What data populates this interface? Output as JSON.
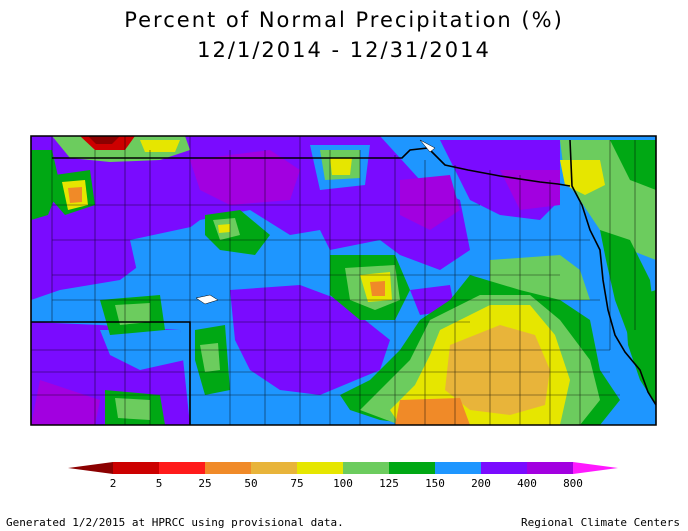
{
  "title": {
    "line1": "Percent of Normal Precipitation (%)",
    "line2": "12/1/2014 - 12/31/2014"
  },
  "legend": {
    "colors": [
      "#8b0000",
      "#cc0000",
      "#ff1a1a",
      "#f08a28",
      "#e8b43a",
      "#e6e600",
      "#6ccc5e",
      "#00a814",
      "#1e96ff",
      "#7a0bff",
      "#a200e0",
      "#ff19ff"
    ],
    "labels": [
      "2",
      "5",
      "25",
      "50",
      "75",
      "100",
      "125",
      "150",
      "200",
      "400",
      "800"
    ]
  },
  "footer": {
    "left": "Generated 1/2/2015 at HPRCC using provisional data.",
    "right": "Regional Climate Centers"
  }
}
